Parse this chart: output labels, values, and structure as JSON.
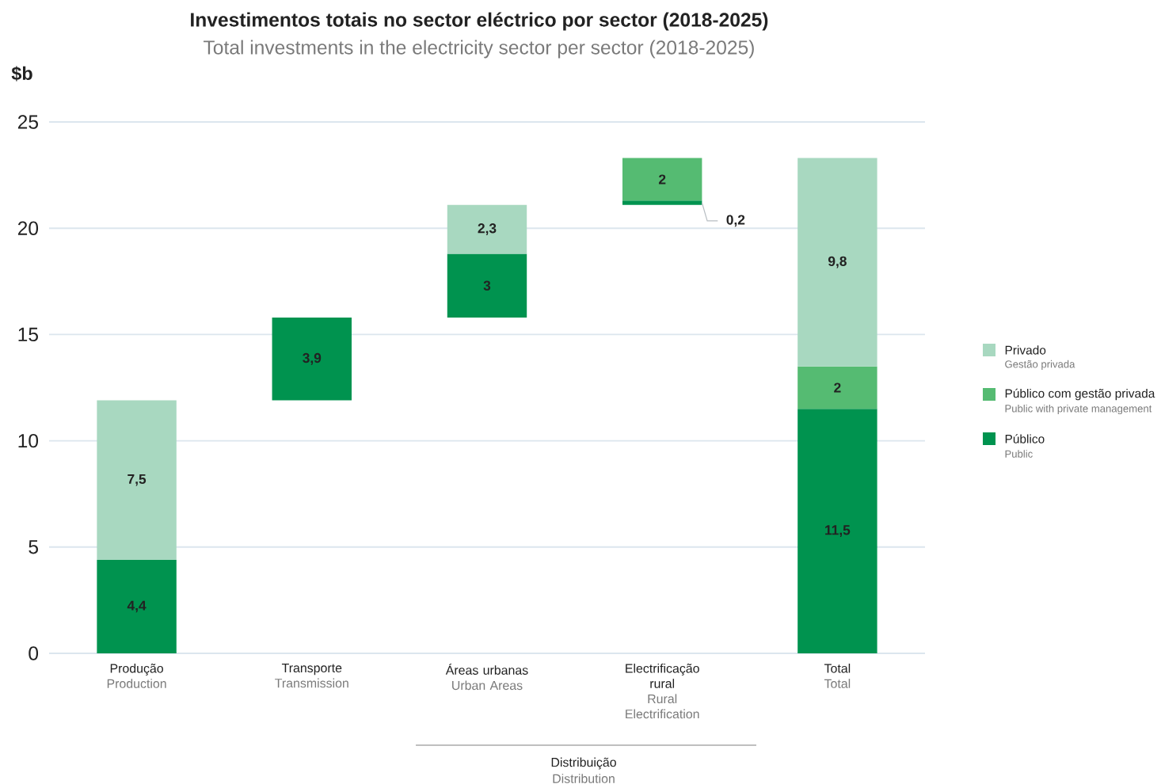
{
  "chart_data": {
    "type": "bar",
    "title": "Investimentos totais no sector eléctrico por sector (2018-2025)",
    "subtitle": "Total investments in the electricity sector per sector (2018-2025)",
    "ylabel": "$b",
    "categories": [
      "Produção",
      "Transporte",
      "Áreas urbanas",
      "Electrificação rural",
      "Total"
    ],
    "series": [
      {
        "name": "Público",
        "color": "#00934f",
        "base": [
          0,
          11.9,
          15.8,
          21.1,
          0
        ],
        "values": [
          4.4,
          3.9,
          3,
          0.2,
          11.5
        ],
        "value_labels": [
          "4,4",
          "3,9",
          "3",
          "0,2",
          "11,5"
        ]
      },
      {
        "name": "Público com gestão privada",
        "color": "#55bb72",
        "base": [
          null,
          null,
          null,
          21.3,
          11.5
        ],
        "values": [
          null,
          null,
          null,
          2,
          2
        ],
        "value_labels": [
          null,
          null,
          null,
          "2",
          "2"
        ]
      },
      {
        "name": "Privado",
        "color": "#a8d8c0",
        "base": [
          4.4,
          null,
          18.8,
          null,
          13.5
        ],
        "values": [
          7.5,
          null,
          2.3,
          null,
          9.8
        ],
        "value_labels": [
          "7,5",
          null,
          "2,3",
          null,
          "9,8"
        ]
      }
    ],
    "ylim": [
      0,
      25
    ],
    "yticks": [
      0,
      5,
      10,
      15,
      20,
      25
    ],
    "grid": "y",
    "legend": "right",
    "annotations": [
      "Production",
      "Transmission",
      "Urban Areas",
      "Rural Electrification",
      "Total",
      "Public",
      "Public with private management",
      "Gestão privada",
      "Distribuição",
      "Distribution"
    ]
  }
}
